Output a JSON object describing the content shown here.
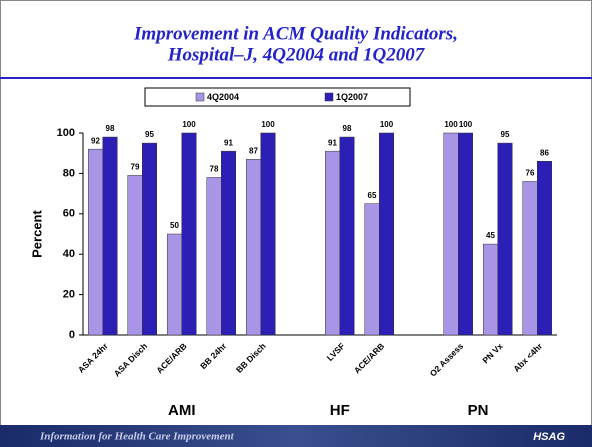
{
  "chart_data": {
    "type": "bar",
    "title": [
      "Improvement in ACM Quality Indicators,",
      "Hospital–J, 4Q2004 and 1Q2007"
    ],
    "y_label": "Percent",
    "categories": [
      "ASA 24hr",
      "ASA Disch",
      "ACE/ARB",
      "BB 24hr",
      "BB Disch",
      null,
      "LVSF",
      "ACE/ARB",
      null,
      "O2 Assess",
      "PN Vx",
      "Abx <4hr"
    ],
    "series": [
      {
        "name": "4Q2004",
        "color": "#a995e6",
        "values": [
          92,
          79,
          50,
          78,
          87,
          null,
          91,
          65,
          null,
          100,
          45,
          76
        ]
      },
      {
        "name": "1Q2007",
        "color": "#2b1fb5",
        "values": [
          98,
          95,
          100,
          91,
          100,
          null,
          98,
          100,
          null,
          100,
          95,
          86
        ]
      }
    ],
    "groups": [
      "AMI",
      "HF",
      "PN"
    ],
    "ylim": [
      0,
      100
    ],
    "yticks": [
      0,
      20,
      40,
      60,
      80,
      100
    ],
    "grid": false,
    "legend": "top"
  },
  "footer": {
    "tagline": "Information for Health Care Improvement",
    "logo": "HSAG"
  }
}
